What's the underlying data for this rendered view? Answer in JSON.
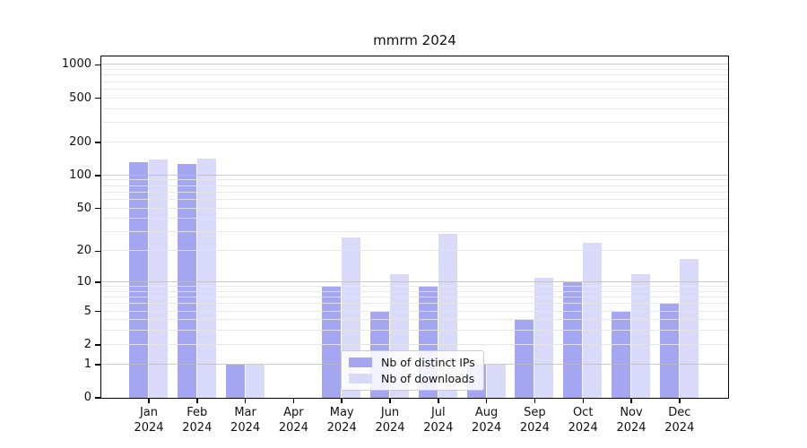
{
  "title": "mmrm 2024",
  "chart_data": {
    "type": "bar",
    "title": "mmrm 2024",
    "categories": [
      "Jan 2024",
      "Feb 2024",
      "Mar 2024",
      "Apr 2024",
      "May 2024",
      "Jun 2024",
      "Jul 2024",
      "Aug 2024",
      "Sep 2024",
      "Oct 2024",
      "Nov 2024",
      "Dec 2024"
    ],
    "series": [
      {
        "name": "Nb of distinct IPs",
        "color": "#a4a6f2",
        "values": [
          132,
          127,
          1,
          0,
          9,
          5,
          9,
          1,
          4,
          10,
          5,
          6
        ]
      },
      {
        "name": "Nb of downloads",
        "color": "#d9daf9",
        "values": [
          140,
          143,
          1,
          0,
          27,
          12,
          29,
          1,
          11,
          24,
          12,
          17
        ]
      }
    ],
    "xlabel": "",
    "ylabel": "",
    "y_axis": {
      "scale": "log1p",
      "tick_values": [
        0,
        1,
        2,
        5,
        10,
        20,
        50,
        100,
        200,
        500,
        1000
      ],
      "tick_labels": [
        "0",
        "1",
        "2",
        "5",
        "10",
        "20",
        "50",
        "100",
        "200",
        "500",
        "1000"
      ],
      "axis_max": 1190,
      "grid": true
    },
    "legend": {
      "entries": [
        "Nb of distinct IPs",
        "Nb of downloads"
      ],
      "position": "lower center"
    }
  },
  "colors": {
    "bar_ips": "#a4a6f2",
    "bar_downloads": "#d9daf9",
    "grid_major": "#b9b9b9",
    "grid_minor": "#e4e4e4",
    "spine": "#000000",
    "text": "#111111",
    "legend_border": "#cccccc"
  }
}
